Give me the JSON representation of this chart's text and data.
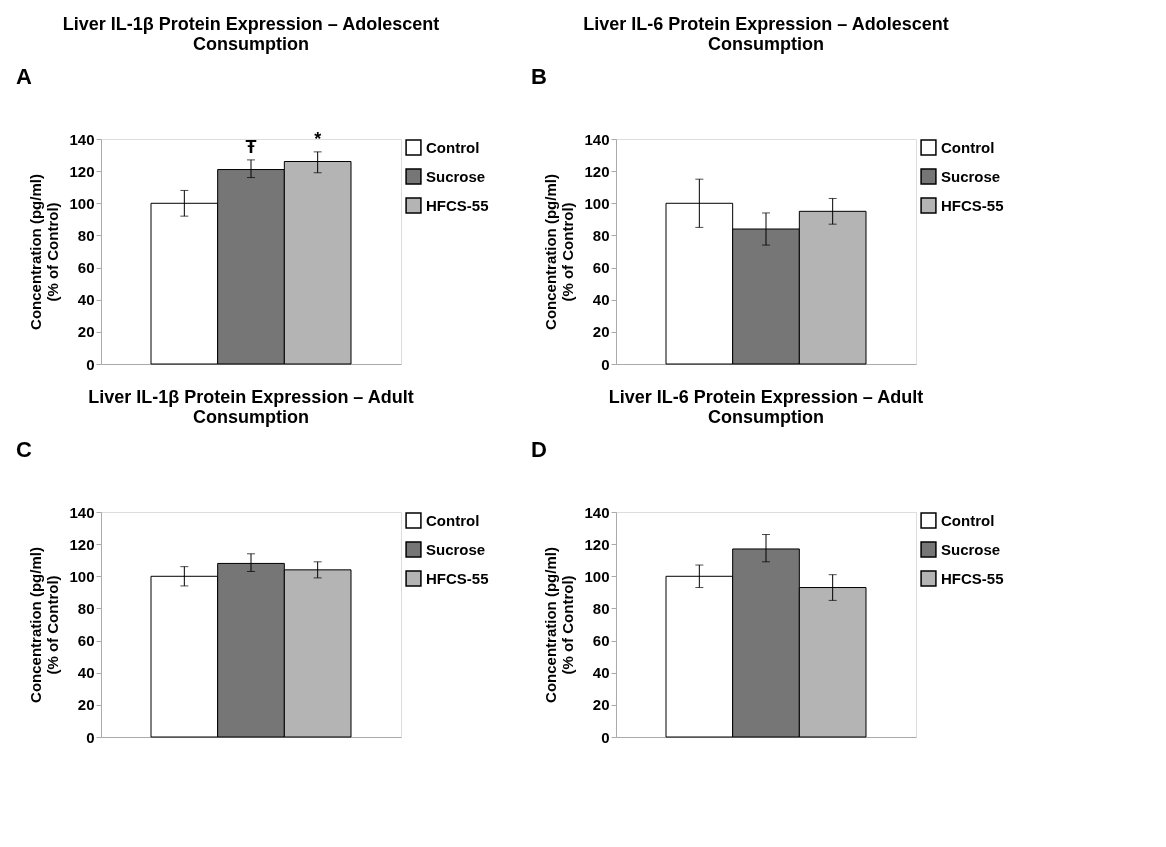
{
  "chart_data": [
    {
      "type": "bar",
      "title": "Liver IL-1β Protein Expression – Adolescent Consumption",
      "ylabel": "Concentration (pg/ml)\n(% of Control)",
      "categories": [
        null
      ],
      "ylim": [
        0,
        140
      ],
      "yticks": [
        0,
        20,
        40,
        60,
        80,
        100,
        120,
        140
      ],
      "legend": "top right",
      "tick_labels": "y",
      "series": [
        {
          "name": "Control",
          "color": "#ffffff",
          "values": [
            100
          ],
          "errors": [
            [
              92,
              108
            ]
          ]
        },
        {
          "name": "Sucrose",
          "color": "#767676",
          "values": [
            121
          ],
          "errors": [
            [
              116,
              127
            ]
          ],
          "value_labels": [
            "Ŧ"
          ]
        },
        {
          "name": "HFCS-55",
          "color": "#b4b4b4",
          "values": [
            126
          ],
          "errors": [
            [
              119,
              132
            ]
          ],
          "value_labels": [
            "*"
          ]
        }
      ],
      "annotations": [
        "A"
      ]
    },
    {
      "type": "bar",
      "title": "Liver IL-6 Protein Expression – Adolescent Consumption",
      "ylabel": "Concentration (pg/ml)\n(% of Control)",
      "categories": [
        null
      ],
      "ylim": [
        0,
        140
      ],
      "yticks": [
        0,
        20,
        40,
        60,
        80,
        100,
        120,
        140
      ],
      "legend": "top right",
      "tick_labels": "y",
      "series": [
        {
          "name": "Control",
          "color": "#ffffff",
          "values": [
            100
          ],
          "errors": [
            [
              85,
              115
            ]
          ]
        },
        {
          "name": "Sucrose",
          "color": "#767676",
          "values": [
            84
          ],
          "errors": [
            [
              74,
              94
            ]
          ]
        },
        {
          "name": "HFCS-55",
          "color": "#b4b4b4",
          "values": [
            95
          ],
          "errors": [
            [
              87,
              103
            ]
          ]
        }
      ],
      "annotations": [
        "B"
      ]
    },
    {
      "type": "bar",
      "title": "Liver IL-1β  Protein Expression – Adult Consumption",
      "ylabel": "Concentration (pg/ml)\n(% of Control)",
      "categories": [
        null
      ],
      "ylim": [
        0,
        140
      ],
      "yticks": [
        0,
        20,
        40,
        60,
        80,
        100,
        120,
        140
      ],
      "legend": "top right",
      "tick_labels": "y",
      "series": [
        {
          "name": "Control",
          "color": "#ffffff",
          "values": [
            100
          ],
          "errors": [
            [
              94,
              106
            ]
          ]
        },
        {
          "name": "Sucrose",
          "color": "#767676",
          "values": [
            108
          ],
          "errors": [
            [
              103,
              114
            ]
          ]
        },
        {
          "name": "HFCS-55",
          "color": "#b4b4b4",
          "values": [
            104
          ],
          "errors": [
            [
              99,
              109
            ]
          ]
        }
      ],
      "annotations": [
        "C"
      ]
    },
    {
      "type": "bar",
      "title": "Liver IL-6 Protein Expression – Adult Consumption",
      "ylabel": "Concentration (pg/ml)\n(% of Control)",
      "categories": [
        null
      ],
      "ylim": [
        0,
        140
      ],
      "yticks": [
        0,
        20,
        40,
        60,
        80,
        100,
        120,
        140
      ],
      "legend": "top right",
      "tick_labels": "y",
      "series": [
        {
          "name": "Control",
          "color": "#ffffff",
          "values": [
            100
          ],
          "errors": [
            [
              93,
              107
            ]
          ]
        },
        {
          "name": "Sucrose",
          "color": "#767676",
          "values": [
            117
          ],
          "errors": [
            [
              109,
              126
            ]
          ]
        },
        {
          "name": "HFCS-55",
          "color": "#b4b4b4",
          "values": [
            93
          ],
          "errors": [
            [
              85,
              101
            ]
          ]
        }
      ],
      "annotations": [
        "D"
      ]
    }
  ]
}
